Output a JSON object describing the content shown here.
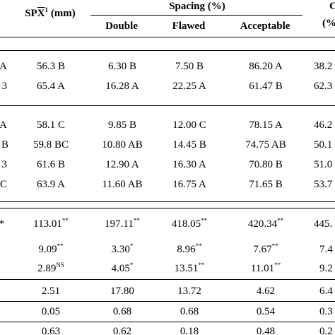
{
  "header": {
    "spx_prefix": "SP",
    "spx_x": "X",
    "spx_sup": "1",
    "spx_unit": " (mm)",
    "spacing": "Spacing (%)",
    "double": "Double",
    "flawed": "Flawed",
    "acceptable": "Acceptable",
    "cut_right_top": "C",
    "cut_right_bottom": "(%"
  },
  "rows": [
    {
      "label": "A",
      "spx": "56.3 B",
      "double": "6.30 B",
      "flawed": "7.50 B",
      "acceptable": "86.20 A",
      "cut": "38.2"
    },
    {
      "label": "3",
      "spx": "65.4 A",
      "double": "16.28 A",
      "flawed": "22.25 A",
      "acceptable": "61.47 B",
      "cut": "62.3"
    },
    {
      "label": "A",
      "spx": "58.1 C",
      "double": "9.85 B",
      "flawed": "12.00 C",
      "acceptable": "78.15 A",
      "cut": "46.2"
    },
    {
      "label": "B",
      "spx": "59.8 BC",
      "double": "10.80 AB",
      "flawed": "14.45 B",
      "acceptable": "74.75 AB",
      "cut": "50.1"
    },
    {
      "label": "3",
      "spx": "61.6 B",
      "double": "12.90 A",
      "flawed": "16.30 A",
      "acceptable": "70.80 B",
      "cut": "51.0"
    },
    {
      "label": "C",
      "spx": "63.9 A",
      "double": "11.60 AB",
      "flawed": "16.75 A",
      "acceptable": "71.65 B",
      "cut": "53.7"
    }
  ],
  "anova": [
    {
      "label": "*",
      "spx": "113.01",
      "spx_sig": "**",
      "double": "197.11",
      "double_sig": "**",
      "flawed": "418.05",
      "flawed_sig": "**",
      "acceptable": "420.34",
      "acceptable_sig": "**",
      "cut": "445."
    },
    {
      "label": "",
      "spx": "9.09",
      "spx_sig": "**",
      "double": "3.30",
      "double_sig": "*",
      "flawed": "8.96",
      "flawed_sig": "**",
      "acceptable": "7.67",
      "acceptable_sig": "**",
      "cut": "7.4"
    },
    {
      "label": "",
      "spx": "2.89",
      "spx_sig": "NS",
      "double": "4.05",
      "double_sig": "*",
      "flawed": "13.51",
      "flawed_sig": "**",
      "acceptable": "11.01",
      "acceptable_sig": "**",
      "cut": "9.2"
    }
  ],
  "stats": [
    {
      "spx": "2.51",
      "double": "17.80",
      "flawed": "13.72",
      "acceptable": "4.62",
      "cut": "6.4"
    },
    {
      "spx": "0.05",
      "double": "0.68",
      "flawed": "0.68",
      "acceptable": "0.54",
      "cut": "0.3"
    },
    {
      "spx": "0.63",
      "double": "0.62",
      "flawed": "0.18",
      "acceptable": "0.48",
      "cut": "0.2"
    }
  ]
}
